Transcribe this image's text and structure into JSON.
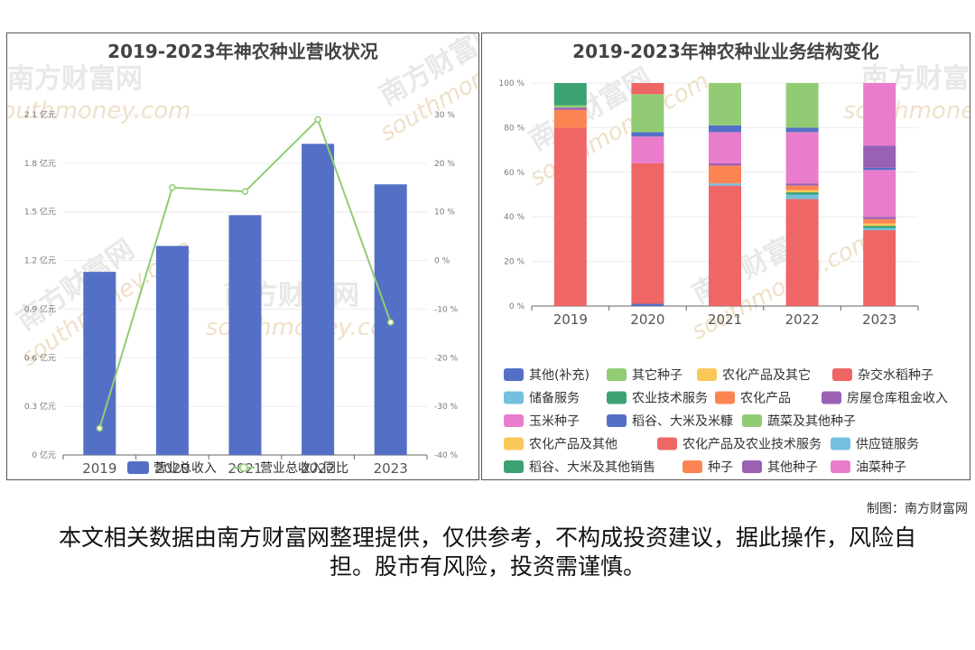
{
  "left_chart_title": "2019-2023年神农种业营收状况",
  "right_chart_title": "2019-2023年神农种业业务结构变化",
  "watermark_cn": "南方财富网",
  "watermark_en": "southmoney.com",
  "credit": "制图：南方财富网",
  "disclaimer": "本文相关数据由南方财富网整理提供，仅供参考，不构成投资建议，据此操作，风险自担。股市有风险，投资需谨慎。",
  "chart_data": [
    {
      "type": "bar",
      "title": "2019-2023年神农种业营收状况",
      "categories": [
        "2019",
        "2020",
        "2021",
        "2022",
        "2023"
      ],
      "y_ticks": [
        "0 亿元",
        "0.3 亿元",
        "0.6 亿元",
        "0.9 亿元",
        "1.2 亿元",
        "1.5 亿元",
        "1.8 亿元",
        "2.1 亿元"
      ],
      "y2_ticks": [
        "-40 %",
        "-30 %",
        "-20 %",
        "-10 %",
        "0 %",
        "10 %",
        "20 %",
        "30 %"
      ],
      "ylim": [
        0,
        2.1
      ],
      "y2lim": [
        -40,
        30
      ],
      "series": [
        {
          "name": "营业总收入",
          "kind": "bar",
          "color": "#5470c6",
          "values": [
            1.13,
            1.29,
            1.48,
            1.92,
            1.67
          ]
        },
        {
          "name": "营业总收入同比",
          "kind": "line",
          "color": "#91cc75",
          "values": [
            -34.5,
            15,
            14.2,
            29,
            -12.7
          ]
        }
      ],
      "legend_position": "bottom"
    },
    {
      "type": "bar",
      "stacked": true,
      "title": "2019-2023年神农种业业务结构变化",
      "categories": [
        "2019",
        "2020",
        "2021",
        "2022",
        "2023"
      ],
      "y_ticks": [
        "0 %",
        "20 %",
        "40 %",
        "60 %",
        "80 %",
        "100 %"
      ],
      "ylim": [
        0,
        100
      ],
      "legend_position": "bottom",
      "legend": [
        {
          "name": "其他(补充)",
          "color": "#5470c6"
        },
        {
          "name": "其它种子",
          "color": "#91cc75"
        },
        {
          "name": "农化产品及其它",
          "color": "#fac858"
        },
        {
          "name": "杂交水稻种子",
          "color": "#ee6666"
        },
        {
          "name": "储备服务",
          "color": "#73c0de"
        },
        {
          "name": "农业技术服务",
          "color": "#3ba272"
        },
        {
          "name": "农化产品",
          "color": "#fc8452"
        },
        {
          "name": "房屋仓库租金收入",
          "color": "#9a60b4"
        },
        {
          "name": "玉米种子",
          "color": "#ea7ccc"
        },
        {
          "name": "稻谷、大米及米糠",
          "color": "#5470c6"
        },
        {
          "name": "蔬菜及其他种子",
          "color": "#91cc75"
        },
        {
          "name": "农化产品及其他",
          "color": "#fac858"
        },
        {
          "name": "农化产品及农业技术服务",
          "color": "#ee6666"
        },
        {
          "name": "供应链服务",
          "color": "#73c0de"
        },
        {
          "name": "稻谷、大米及其他销售",
          "color": "#3ba272"
        },
        {
          "name": "种子",
          "color": "#fc8452"
        },
        {
          "name": "其他种子",
          "color": "#9a60b4"
        },
        {
          "name": "油菜种子",
          "color": "#ea7ccc"
        }
      ],
      "stacks": [
        [
          {
            "name": "杂交水稻种子",
            "color": "#ee6666",
            "value": 80
          },
          {
            "name": "农化产品",
            "color": "#fc8452",
            "value": 8
          },
          {
            "name": "房屋仓库租金收入",
            "color": "#9a60b4",
            "value": 1
          },
          {
            "name": "蔬菜及其他种子",
            "color": "#91cc75",
            "value": 1
          },
          {
            "name": "农业技术服务",
            "color": "#3ba272",
            "value": 10
          }
        ],
        [
          {
            "name": "其他(补充)",
            "color": "#5470c6",
            "value": 1
          },
          {
            "name": "杂交水稻种子",
            "color": "#ee6666",
            "value": 63
          },
          {
            "name": "玉米种子",
            "color": "#ea7ccc",
            "value": 12
          },
          {
            "name": "稻谷、大米及米糠",
            "color": "#5470c6",
            "value": 2
          },
          {
            "name": "蔬菜及其他种子",
            "color": "#91cc75",
            "value": 17
          },
          {
            "name": "农化产品及农业技术服务",
            "color": "#ee6666",
            "value": 5
          }
        ],
        [
          {
            "name": "杂交水稻种子",
            "color": "#ee6666",
            "value": 54
          },
          {
            "name": "供应链服务",
            "color": "#73c0de",
            "value": 1
          },
          {
            "name": "种子",
            "color": "#fc8452",
            "value": 8
          },
          {
            "name": "其他种子",
            "color": "#9a60b4",
            "value": 1
          },
          {
            "name": "玉米种子",
            "color": "#ea7ccc",
            "value": 14
          },
          {
            "name": "稻谷、大米及米糠",
            "color": "#5470c6",
            "value": 3
          },
          {
            "name": "蔬菜及其他种子",
            "color": "#91cc75",
            "value": 19
          }
        ],
        [
          {
            "name": "杂交水稻种子",
            "color": "#ee6666",
            "value": 48
          },
          {
            "name": "供应链服务",
            "color": "#73c0de",
            "value": 2
          },
          {
            "name": "稻谷、大米及其他销售",
            "color": "#3ba272",
            "value": 1
          },
          {
            "name": "农化产品及其他",
            "color": "#fac858",
            "value": 1
          },
          {
            "name": "种子",
            "color": "#fc8452",
            "value": 2
          },
          {
            "name": "其他种子",
            "color": "#9a60b4",
            "value": 1
          },
          {
            "name": "玉米种子",
            "color": "#ea7ccc",
            "value": 23
          },
          {
            "name": "稻谷、大米及米糠",
            "color": "#5470c6",
            "value": 2
          },
          {
            "name": "蔬菜及其他种子",
            "color": "#91cc75",
            "value": 20
          }
        ],
        [
          {
            "name": "杂交水稻种子",
            "color": "#ee6666",
            "value": 34
          },
          {
            "name": "供应链服务",
            "color": "#73c0de",
            "value": 1
          },
          {
            "name": "稻谷、大米及其他销售",
            "color": "#3ba272",
            "value": 1
          },
          {
            "name": "农化产品及其他",
            "color": "#fac858",
            "value": 1
          },
          {
            "name": "种子",
            "color": "#fc8452",
            "value": 2
          },
          {
            "name": "其他种子",
            "color": "#9a60b4",
            "value": 1
          },
          {
            "name": "油菜种子",
            "color": "#ea7ccc",
            "value": 21
          },
          {
            "name": "稻谷、大米及米糠",
            "color": "#5470c6",
            "value": 1
          },
          {
            "name": "其他种子",
            "color": "#9a60b4",
            "value": 10
          },
          {
            "name": "油菜种子",
            "color": "#ea7ccc",
            "value": 28
          }
        ]
      ]
    }
  ]
}
